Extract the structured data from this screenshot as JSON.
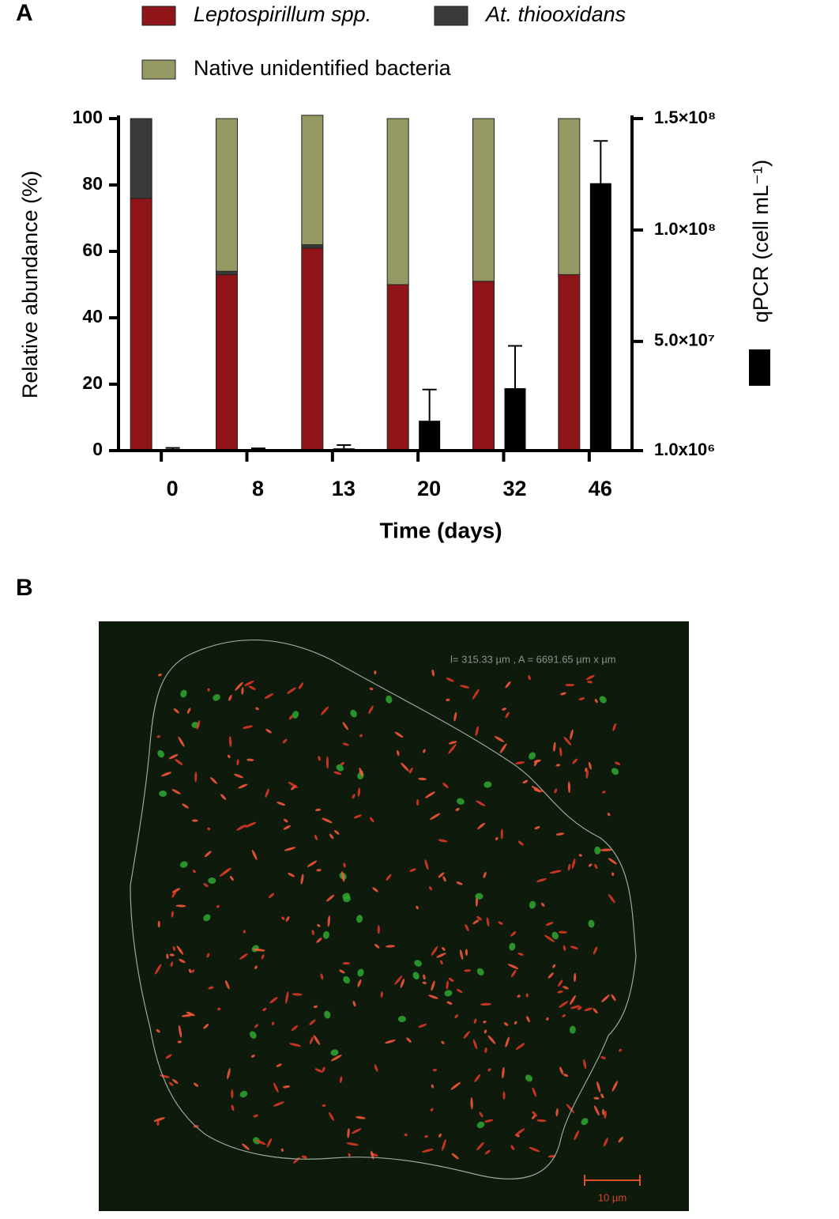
{
  "panel_labels": [
    "A",
    "B"
  ],
  "chart_data": {
    "type": "bar",
    "x_label": "Time (days)",
    "y_label": "Relative abundance (%)",
    "y2_label": "qPCR (cell mL⁻¹)",
    "categories": [
      "0",
      "8",
      "13",
      "20",
      "32",
      "46"
    ],
    "series": [
      {
        "name": "Leptospirillum spp.",
        "color": "#8f1519",
        "values": [
          76,
          53,
          61,
          50,
          51,
          53
        ]
      },
      {
        "name": "At. thiooxidans",
        "color": "#3a3a3a",
        "values": [
          24,
          1,
          1,
          0,
          0,
          0
        ]
      },
      {
        "name": "Native unidentified bacteria",
        "color": "#959863",
        "values": [
          0,
          46,
          39,
          50,
          49,
          47
        ]
      },
      {
        "axis": "y2",
        "color": "#000000",
        "values": [
          1700000,
          1700000,
          2000000,
          14400000,
          29000000,
          121000000
        ],
        "errors": [
          500000,
          300000,
          1500000,
          14000000,
          19000000,
          19000000
        ]
      }
    ],
    "ylim": [
      0,
      100
    ],
    "yticks": [
      0,
      20,
      40,
      60,
      80,
      100
    ],
    "y2lim": [
      1000000,
      150000000
    ],
    "y2ticks": [
      {
        "value": 1000000,
        "label": "1.0x10⁶"
      },
      {
        "value": 50000000,
        "label": "5.0×10⁷"
      },
      {
        "value": 100000000,
        "label": "1.0×10⁸"
      },
      {
        "value": 150000000,
        "label": "1.5×10⁸"
      }
    ],
    "grid": false
  },
  "image": {
    "measurement": "l= 315.33 µm ,  A = 6691.65 µm x µm",
    "scale_bar": "10 µm"
  }
}
